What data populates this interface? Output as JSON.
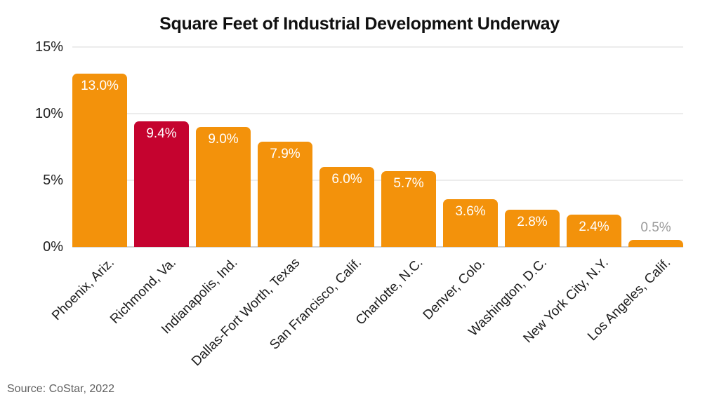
{
  "title": "Square Feet of Industrial Development Underway",
  "source": "Source: CoStar, 2022",
  "colors": {
    "bar": "#F3920B",
    "highlight": "#C5032F",
    "label_inside": "#FFFFFF",
    "label_outside": "#9B9B9B",
    "gridline": "#ECECEC",
    "baseline": "#D2D2D2",
    "axis_text": "#222222",
    "title_text": "#101010",
    "source_text": "#616161"
  },
  "chart_data": {
    "type": "bar",
    "title": "Square Feet of Industrial Development Underway",
    "categories": [
      "Phoenix, Ariz.",
      "Richmond, Va.",
      "Indianapolis, Ind.",
      "Dallas-Fort Worth, Texas",
      "San Francisco, Calif.",
      "Charlotte, N.C.",
      "Denver, Colo.",
      "Washington, D.C.",
      "New York City, N.Y.",
      "Los Angeles, Calif."
    ],
    "values": [
      13.0,
      9.4,
      9.0,
      7.9,
      6.0,
      5.7,
      3.6,
      2.8,
      2.4,
      0.5
    ],
    "value_labels": [
      "13.0%",
      "9.4%",
      "9.0%",
      "7.9%",
      "6.0%",
      "5.7%",
      "3.6%",
      "2.8%",
      "2.4%",
      "0.5%"
    ],
    "highlight_index": 1,
    "bar_color": "#F3920B",
    "highlight_color": "#C5032F",
    "yticks": [
      0,
      5,
      10,
      15
    ],
    "ytick_labels": [
      "0%",
      "5%",
      "10%",
      "15%"
    ],
    "ylim": [
      0,
      15
    ],
    "grid": true,
    "legend": false,
    "xlabel": "",
    "ylabel": "",
    "source": "Source: CoStar, 2022"
  }
}
